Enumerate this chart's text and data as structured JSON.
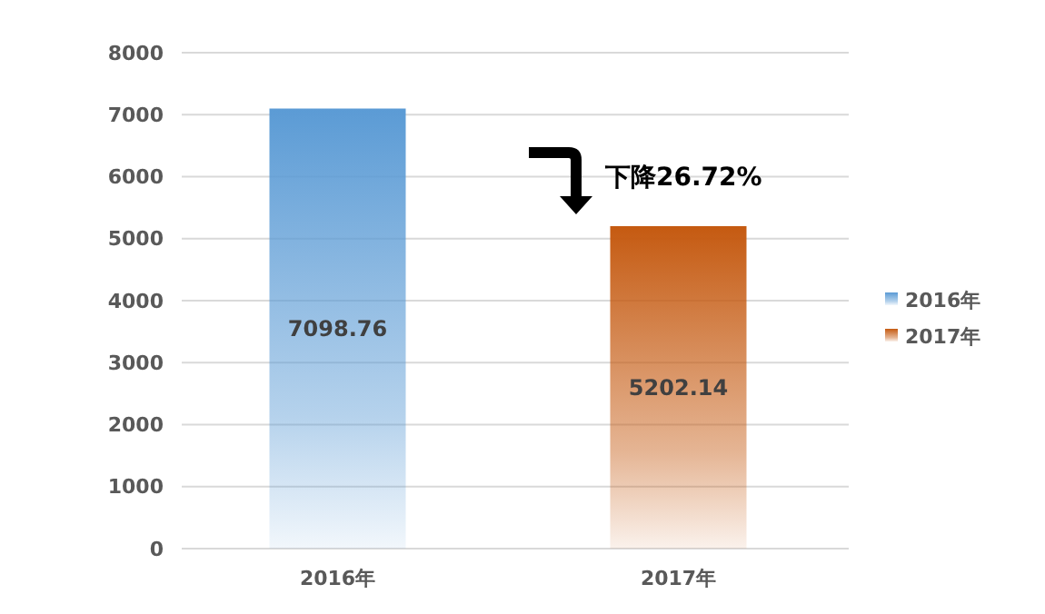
{
  "chart_data": {
    "type": "bar",
    "categories": [
      "2016年",
      "2017年"
    ],
    "stacked": true,
    "series": [
      {
        "name": "2016年",
        "color": "#5b9bd5",
        "values": [
          7098.76,
          null
        ]
      },
      {
        "name": "2017年",
        "color": "#c55a11",
        "values": [
          null,
          5202.14
        ]
      }
    ],
    "ylim": [
      0,
      8000
    ],
    "yticks": [
      0,
      1000,
      2000,
      3000,
      4000,
      5000,
      6000,
      7000,
      8000
    ],
    "grid": "y",
    "legend": "right",
    "data_labels": true,
    "annotations": [
      "下降26.72%"
    ]
  }
}
